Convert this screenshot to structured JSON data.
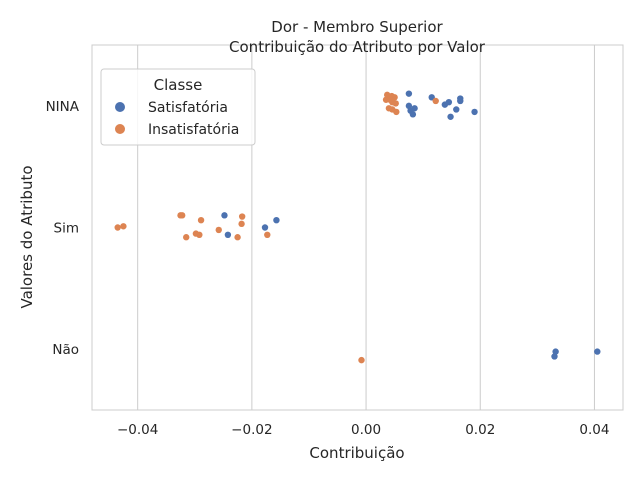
{
  "chart_data": {
    "type": "scatter",
    "title": "Dor - Membro Superior",
    "subtitle": "Contribuição do Atributo por Valor",
    "xlabel": "Contribuição",
    "ylabel": "Valores do Atributo",
    "xlim": [
      -0.048,
      0.045
    ],
    "x_ticks": [
      -0.04,
      -0.02,
      0.0,
      0.02,
      0.04
    ],
    "x_tick_labels": [
      "−0.04",
      "−0.02",
      "0.00",
      "0.02",
      "0.04"
    ],
    "categories": [
      "NINA",
      "Sim",
      "Não"
    ],
    "grid": true,
    "legend": {
      "title": "Classe",
      "placement": "top-left"
    },
    "series": [
      {
        "name": "Satisfatória",
        "color": "#4c72b0",
        "points": [
          {
            "cat": "NINA",
            "x": 0.0075,
            "jitter": -0.1
          },
          {
            "cat": "NINA",
            "x": 0.0115,
            "jitter": -0.07
          },
          {
            "cat": "NINA",
            "x": 0.0165,
            "jitter": -0.06
          },
          {
            "cat": "NINA",
            "x": 0.0165,
            "jitter": -0.04
          },
          {
            "cat": "NINA",
            "x": 0.0145,
            "jitter": -0.03
          },
          {
            "cat": "NINA",
            "x": 0.0138,
            "jitter": -0.01
          },
          {
            "cat": "NINA",
            "x": 0.0075,
            "jitter": 0.0
          },
          {
            "cat": "NINA",
            "x": 0.0085,
            "jitter": 0.02
          },
          {
            "cat": "NINA",
            "x": 0.0158,
            "jitter": 0.03
          },
          {
            "cat": "NINA",
            "x": 0.0078,
            "jitter": 0.04
          },
          {
            "cat": "NINA",
            "x": 0.019,
            "jitter": 0.05
          },
          {
            "cat": "NINA",
            "x": 0.0082,
            "jitter": 0.07
          },
          {
            "cat": "NINA",
            "x": 0.0148,
            "jitter": 0.09
          },
          {
            "cat": "Sim",
            "x": -0.0248,
            "jitter": -0.1
          },
          {
            "cat": "Sim",
            "x": -0.0157,
            "jitter": -0.06
          },
          {
            "cat": "Sim",
            "x": -0.0177,
            "jitter": 0.0
          },
          {
            "cat": "Sim",
            "x": -0.0242,
            "jitter": 0.06
          },
          {
            "cat": "Não",
            "x": 0.0332,
            "jitter": 0.02
          },
          {
            "cat": "Não",
            "x": 0.0405,
            "jitter": 0.02
          },
          {
            "cat": "Não",
            "x": 0.033,
            "jitter": 0.06
          }
        ]
      },
      {
        "name": "Insatisfatória",
        "color": "#dd8452",
        "points": [
          {
            "cat": "NINA",
            "x": 0.0037,
            "jitter": -0.09
          },
          {
            "cat": "NINA",
            "x": 0.0045,
            "jitter": -0.08
          },
          {
            "cat": "NINA",
            "x": 0.005,
            "jitter": -0.07
          },
          {
            "cat": "NINA",
            "x": 0.0035,
            "jitter": -0.05
          },
          {
            "cat": "NINA",
            "x": 0.0042,
            "jitter": -0.05
          },
          {
            "cat": "NINA",
            "x": 0.0122,
            "jitter": -0.04
          },
          {
            "cat": "NINA",
            "x": 0.0046,
            "jitter": -0.03
          },
          {
            "cat": "NINA",
            "x": 0.0052,
            "jitter": -0.02
          },
          {
            "cat": "NINA",
            "x": 0.004,
            "jitter": 0.02
          },
          {
            "cat": "NINA",
            "x": 0.0046,
            "jitter": 0.03
          },
          {
            "cat": "NINA",
            "x": 0.0053,
            "jitter": 0.05
          },
          {
            "cat": "Sim",
            "x": -0.0325,
            "jitter": -0.1
          },
          {
            "cat": "Sim",
            "x": -0.0322,
            "jitter": -0.1
          },
          {
            "cat": "Sim",
            "x": -0.0217,
            "jitter": -0.09
          },
          {
            "cat": "Sim",
            "x": -0.0289,
            "jitter": -0.06
          },
          {
            "cat": "Sim",
            "x": -0.0218,
            "jitter": -0.03
          },
          {
            "cat": "Sim",
            "x": -0.0425,
            "jitter": -0.01
          },
          {
            "cat": "Sim",
            "x": -0.0435,
            "jitter": 0.0
          },
          {
            "cat": "Sim",
            "x": -0.0258,
            "jitter": 0.02
          },
          {
            "cat": "Sim",
            "x": -0.0298,
            "jitter": 0.05
          },
          {
            "cat": "Sim",
            "x": -0.0292,
            "jitter": 0.06
          },
          {
            "cat": "Sim",
            "x": -0.0173,
            "jitter": 0.06
          },
          {
            "cat": "Sim",
            "x": -0.0315,
            "jitter": 0.08
          },
          {
            "cat": "Sim",
            "x": -0.0225,
            "jitter": 0.08
          },
          {
            "cat": "Não",
            "x": -0.0008,
            "jitter": 0.09
          }
        ]
      }
    ]
  }
}
